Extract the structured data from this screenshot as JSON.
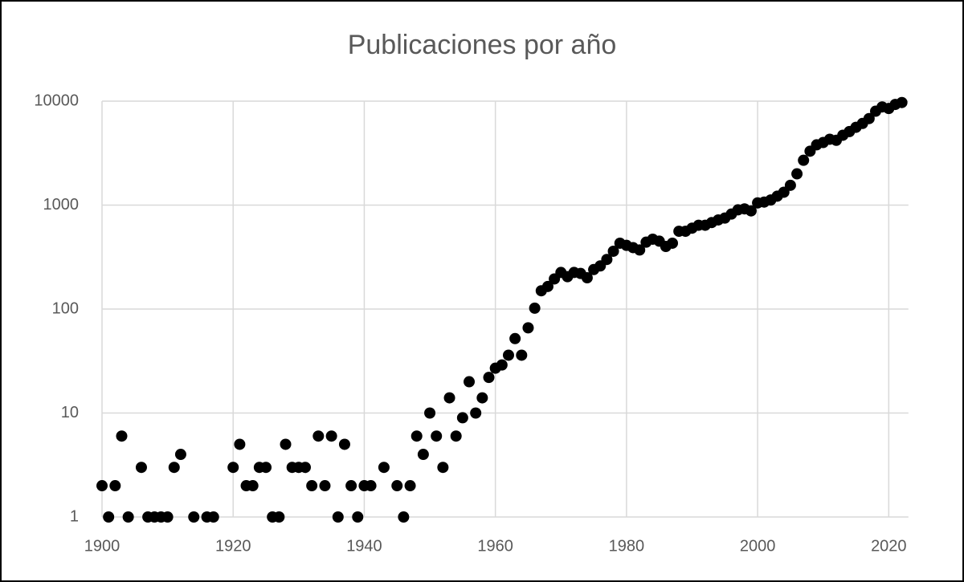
{
  "chart_data": {
    "type": "scatter",
    "title": "Publicaciones por año",
    "x": [
      1900,
      1901,
      1902,
      1903,
      1904,
      1906,
      1907,
      1908,
      1909,
      1910,
      1911,
      1912,
      1914,
      1916,
      1917,
      1920,
      1921,
      1922,
      1923,
      1924,
      1925,
      1926,
      1927,
      1928,
      1929,
      1930,
      1931,
      1932,
      1933,
      1934,
      1935,
      1936,
      1937,
      1938,
      1939,
      1940,
      1941,
      1943,
      1945,
      1946,
      1947,
      1948,
      1949,
      1950,
      1951,
      1952,
      1953,
      1954,
      1955,
      1956,
      1957,
      1958,
      1959,
      1960,
      1961,
      1962,
      1963,
      1964,
      1965,
      1966,
      1967,
      1968,
      1969,
      1970,
      1971,
      1972,
      1973,
      1974,
      1975,
      1976,
      1977,
      1978,
      1979,
      1980,
      1981,
      1982,
      1983,
      1984,
      1985,
      1986,
      1987,
      1988,
      1989,
      1990,
      1991,
      1992,
      1993,
      1994,
      1995,
      1996,
      1997,
      1998,
      1999,
      2000,
      2001,
      2002,
      2003,
      2004,
      2005,
      2006,
      2007,
      2008,
      2009,
      2010,
      2011,
      2012,
      2013,
      2014,
      2015,
      2016,
      2017,
      2018,
      2019,
      2020,
      2021,
      2022
    ],
    "values": [
      2,
      1,
      2,
      6,
      1,
      3,
      1,
      1,
      1,
      1,
      3,
      4,
      1,
      1,
      1,
      3,
      5,
      2,
      2,
      3,
      3,
      1,
      1,
      5,
      3,
      3,
      3,
      2,
      6,
      2,
      6,
      1,
      5,
      2,
      1,
      2,
      2,
      3,
      2,
      1,
      2,
      6,
      4,
      10,
      6,
      3,
      14,
      6,
      9,
      20,
      10,
      14,
      22,
      27,
      29,
      36,
      52,
      36,
      66,
      102,
      150,
      165,
      195,
      225,
      205,
      225,
      220,
      200,
      240,
      260,
      300,
      360,
      430,
      410,
      390,
      370,
      440,
      470,
      450,
      400,
      430,
      560,
      560,
      600,
      640,
      640,
      680,
      720,
      750,
      820,
      900,
      920,
      880,
      1050,
      1070,
      1120,
      1220,
      1330,
      1550,
      2000,
      2700,
      3300,
      3800,
      4000,
      4300,
      4200,
      4700,
      5100,
      5600,
      6100,
      6800,
      8000,
      8800,
      8500,
      9300,
      9700
    ],
    "color": "#000000",
    "xlim": [
      1900,
      2023
    ],
    "xticks": [
      1900,
      1920,
      1940,
      1960,
      1980,
      2000,
      2020
    ],
    "ylim": [
      1,
      10000
    ],
    "yticks": [
      1,
      10,
      100,
      1000,
      10000
    ],
    "log_y": true,
    "grid": true
  }
}
